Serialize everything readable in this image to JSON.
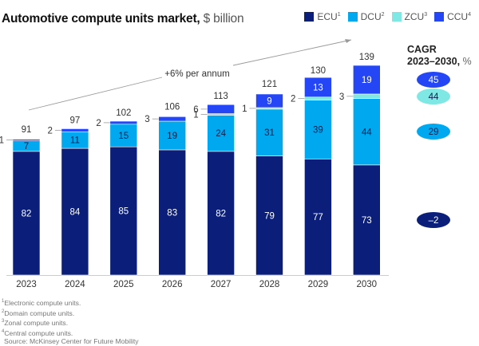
{
  "title": {
    "bold": "Automotive compute units market,",
    "unit": "$ billion"
  },
  "legend": [
    {
      "key": "ECU",
      "label": "ECU",
      "sup": "1",
      "color": "#0b1f7a"
    },
    {
      "key": "DCU",
      "label": "DCU",
      "sup": "2",
      "color": "#00a8f0"
    },
    {
      "key": "ZCU",
      "label": "ZCU",
      "sup": "3",
      "color": "#7fe7e4"
    },
    {
      "key": "CCU",
      "label": "CCU",
      "sup": "4",
      "color": "#2446f5"
    }
  ],
  "cagr": {
    "title_line1": "CAGR",
    "title_line2": "2023–2030,",
    "title_unit": "%",
    "values": [
      {
        "series": "CCU",
        "value": "45",
        "color": "#2446f5",
        "text_color": "#ffffff"
      },
      {
        "series": "ZCU",
        "value": "44",
        "color": "#7fe7e4",
        "text_color": "#0b1f4a"
      },
      {
        "series": "DCU",
        "value": "29",
        "color": "#00a8f0",
        "text_color": "#0b1f4a"
      },
      {
        "series": "ECU",
        "value": "–2",
        "color": "#0b1f7a",
        "text_color": "#ffffff"
      }
    ]
  },
  "chart_data": {
    "type": "bar",
    "stacked": true,
    "title": "Automotive compute units market, $ billion",
    "xlabel": "",
    "ylabel": "$ billion",
    "categories": [
      "2023",
      "2024",
      "2025",
      "2026",
      "2027",
      "2028",
      "2029",
      "2030"
    ],
    "series": [
      {
        "name": "ECU",
        "values": [
          82,
          84,
          85,
          83,
          82,
          79,
          77,
          73
        ]
      },
      {
        "name": "DCU",
        "values": [
          7,
          11,
          15,
          19,
          24,
          31,
          39,
          44
        ]
      },
      {
        "name": "ZCU",
        "values": [
          0,
          0,
          0,
          0,
          1,
          1,
          2,
          3
        ]
      },
      {
        "name": "CCU",
        "values": [
          1,
          2,
          2,
          3,
          6,
          9,
          13,
          19
        ]
      }
    ],
    "totals": [
      91,
      97,
      102,
      106,
      113,
      121,
      130,
      139
    ],
    "annotation": "+6% per annum",
    "grid": false,
    "legend_position": "top-right",
    "ylim": [
      0,
      139
    ]
  },
  "footnotes": [
    {
      "sup": "1",
      "text": "Electronic compute units."
    },
    {
      "sup": "2",
      "text": "Domain compute units."
    },
    {
      "sup": "3",
      "text": "Zonal compute units."
    },
    {
      "sup": "4",
      "text": "Central compute units."
    },
    {
      "sup": "",
      "text": "Source: McKinsey Center for Future Mobility"
    }
  ]
}
